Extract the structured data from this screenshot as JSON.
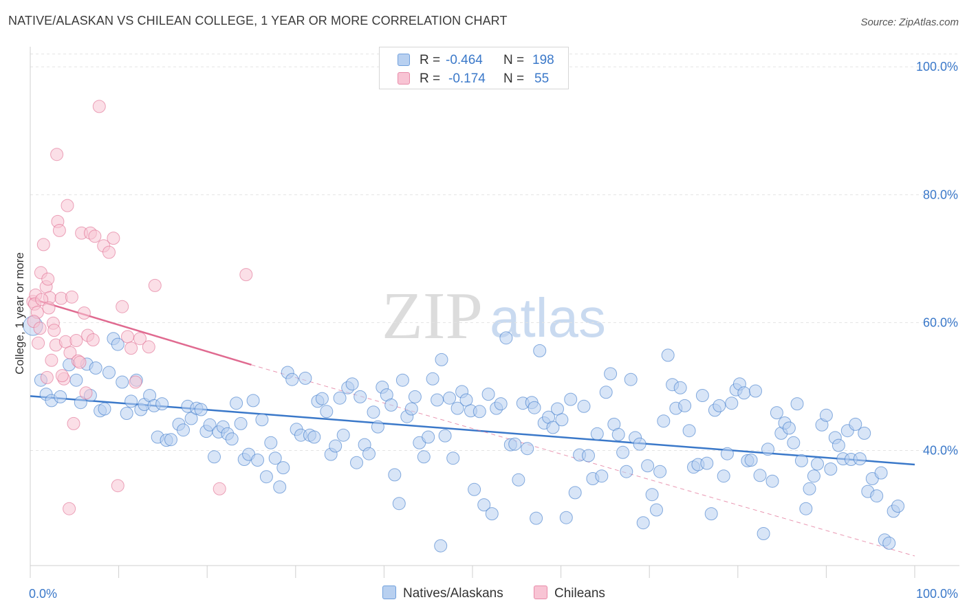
{
  "title": "NATIVE/ALASKAN VS CHILEAN COLLEGE, 1 YEAR OR MORE CORRELATION CHART",
  "source": "Source: ZipAtlas.com",
  "watermark": {
    "zip": "ZIP",
    "atlas": "atlas"
  },
  "legend": {
    "r_label": "R =",
    "n_label": "N =",
    "rows": [
      {
        "name": "Natives/Alaskans",
        "r": "-0.464",
        "n": "198",
        "fill": "#b8d0f0",
        "stroke": "#6f9fdc"
      },
      {
        "name": "Chileans",
        "r": "-0.174",
        "n": "55",
        "fill": "#f8c4d4",
        "stroke": "#e88aa8"
      }
    ]
  },
  "chart_data": {
    "type": "scatter",
    "xlabel": "",
    "ylabel": "College, 1 year or more",
    "xlim": [
      0,
      100
    ],
    "ylim": [
      22,
      104
    ],
    "x_tick_labels": [
      "0.0%",
      "100.0%"
    ],
    "y_ticks": [
      40,
      60,
      80,
      100
    ],
    "y_tick_labels": [
      "40.0%",
      "60.0%",
      "80.0%",
      "100.0%"
    ],
    "series": [
      {
        "name": "Natives/Alaskans",
        "color": "#3a78c9",
        "fill": "#b8d0f0",
        "trend": {
          "x0": 0,
          "y0": 48.5,
          "x1": 100,
          "y1": 37.8,
          "style": "solid"
        },
        "points": [
          [
            0.3,
            59.5
          ],
          [
            1.2,
            51.0
          ],
          [
            1.8,
            48.8
          ],
          [
            2.4,
            47.8
          ],
          [
            3.4,
            48.4
          ],
          [
            4.4,
            53.4
          ],
          [
            5.2,
            51.0
          ],
          [
            5.7,
            47.5
          ],
          [
            6.4,
            53.5
          ],
          [
            6.8,
            48.6
          ],
          [
            7.4,
            52.9
          ],
          [
            7.9,
            46.2
          ],
          [
            8.4,
            46.5
          ],
          [
            8.9,
            52.2
          ],
          [
            9.4,
            57.5
          ],
          [
            9.9,
            56.6
          ],
          [
            10.4,
            50.7
          ],
          [
            10.9,
            45.8
          ],
          [
            11.4,
            47.7
          ],
          [
            12.0,
            51.0
          ],
          [
            12.5,
            46.4
          ],
          [
            12.9,
            47.2
          ],
          [
            13.5,
            48.6
          ],
          [
            14.0,
            47.0
          ],
          [
            14.4,
            42.1
          ],
          [
            14.9,
            47.3
          ],
          [
            15.4,
            41.6
          ],
          [
            15.9,
            41.7
          ],
          [
            16.8,
            44.1
          ],
          [
            17.3,
            43.2
          ],
          [
            17.8,
            46.9
          ],
          [
            18.2,
            45.0
          ],
          [
            18.8,
            46.6
          ],
          [
            19.3,
            46.4
          ],
          [
            19.9,
            43.0
          ],
          [
            20.3,
            44.0
          ],
          [
            20.8,
            39.0
          ],
          [
            21.3,
            42.9
          ],
          [
            21.8,
            43.7
          ],
          [
            22.3,
            42.6
          ],
          [
            22.8,
            41.8
          ],
          [
            23.3,
            47.4
          ],
          [
            23.8,
            44.2
          ],
          [
            24.2,
            38.6
          ],
          [
            24.7,
            39.4
          ],
          [
            25.2,
            47.8
          ],
          [
            25.7,
            38.5
          ],
          [
            26.2,
            44.8
          ],
          [
            26.7,
            35.9
          ],
          [
            27.2,
            41.2
          ],
          [
            27.7,
            38.8
          ],
          [
            28.2,
            34.3
          ],
          [
            28.6,
            37.3
          ],
          [
            29.1,
            52.2
          ],
          [
            29.6,
            51.1
          ],
          [
            30.1,
            43.3
          ],
          [
            30.6,
            42.4
          ],
          [
            31.1,
            51.3
          ],
          [
            31.6,
            42.4
          ],
          [
            32.1,
            42.1
          ],
          [
            32.5,
            47.7
          ],
          [
            33.0,
            48.1
          ],
          [
            33.5,
            46.1
          ],
          [
            34.0,
            39.4
          ],
          [
            34.5,
            40.7
          ],
          [
            35.0,
            48.2
          ],
          [
            35.4,
            42.4
          ],
          [
            35.9,
            49.8
          ],
          [
            36.4,
            50.4
          ],
          [
            36.9,
            38.1
          ],
          [
            37.3,
            48.4
          ],
          [
            37.8,
            40.9
          ],
          [
            38.3,
            39.5
          ],
          [
            38.8,
            46.0
          ],
          [
            39.3,
            43.7
          ],
          [
            39.8,
            49.9
          ],
          [
            40.3,
            48.7
          ],
          [
            40.8,
            47.1
          ],
          [
            41.2,
            36.2
          ],
          [
            41.7,
            31.7
          ],
          [
            42.1,
            51.0
          ],
          [
            42.6,
            45.3
          ],
          [
            43.1,
            46.5
          ],
          [
            43.5,
            48.4
          ],
          [
            44.0,
            41.2
          ],
          [
            44.5,
            39.0
          ],
          [
            45.0,
            42.1
          ],
          [
            45.5,
            51.2
          ],
          [
            46.0,
            47.9
          ],
          [
            46.5,
            54.2
          ],
          [
            46.9,
            42.3
          ],
          [
            47.4,
            48.2
          ],
          [
            47.8,
            38.8
          ],
          [
            48.3,
            46.6
          ],
          [
            48.8,
            49.2
          ],
          [
            49.3,
            47.9
          ],
          [
            49.8,
            46.2
          ],
          [
            50.2,
            33.9
          ],
          [
            50.8,
            46.1
          ],
          [
            51.3,
            31.5
          ],
          [
            51.8,
            48.8
          ],
          [
            52.2,
            30.1
          ],
          [
            52.7,
            46.6
          ],
          [
            53.2,
            47.3
          ],
          [
            53.8,
            57.6
          ],
          [
            54.3,
            40.9
          ],
          [
            54.8,
            41.0
          ],
          [
            55.2,
            35.4
          ],
          [
            55.7,
            47.4
          ],
          [
            56.2,
            40.3
          ],
          [
            56.7,
            47.5
          ],
          [
            57.2,
            29.4
          ],
          [
            57.6,
            55.6
          ],
          [
            58.1,
            44.3
          ],
          [
            58.6,
            45.2
          ],
          [
            59.1,
            43.6
          ],
          [
            59.6,
            46.5
          ],
          [
            60.1,
            44.8
          ],
          [
            60.6,
            29.5
          ],
          [
            61.1,
            48.0
          ],
          [
            61.6,
            33.4
          ],
          [
            62.1,
            39.3
          ],
          [
            62.6,
            46.9
          ],
          [
            63.1,
            39.2
          ],
          [
            63.6,
            35.6
          ],
          [
            64.1,
            42.6
          ],
          [
            64.6,
            36.0
          ],
          [
            65.1,
            49.1
          ],
          [
            65.6,
            52.0
          ],
          [
            66.0,
            44.1
          ],
          [
            66.5,
            42.5
          ],
          [
            67.0,
            39.7
          ],
          [
            67.4,
            36.7
          ],
          [
            67.9,
            51.1
          ],
          [
            68.4,
            42.0
          ],
          [
            68.9,
            41.0
          ],
          [
            69.3,
            28.7
          ],
          [
            69.8,
            37.6
          ],
          [
            70.3,
            33.1
          ],
          [
            70.8,
            30.7
          ],
          [
            71.2,
            36.7
          ],
          [
            71.6,
            44.6
          ],
          [
            72.1,
            54.9
          ],
          [
            72.6,
            50.3
          ],
          [
            73.0,
            46.6
          ],
          [
            73.5,
            49.8
          ],
          [
            74.0,
            47.0
          ],
          [
            74.5,
            43.1
          ],
          [
            75.0,
            37.4
          ],
          [
            75.5,
            37.8
          ],
          [
            76.0,
            48.6
          ],
          [
            76.5,
            38.0
          ],
          [
            77.0,
            30.1
          ],
          [
            77.4,
            46.3
          ],
          [
            77.9,
            47.0
          ],
          [
            78.4,
            36.0
          ],
          [
            78.8,
            39.5
          ],
          [
            79.3,
            47.4
          ],
          [
            79.8,
            49.5
          ],
          [
            80.2,
            50.4
          ],
          [
            80.7,
            49.0
          ],
          [
            81.1,
            38.4
          ],
          [
            81.5,
            38.5
          ],
          [
            82.0,
            49.3
          ],
          [
            82.5,
            36.1
          ],
          [
            82.9,
            27.0
          ],
          [
            83.4,
            40.2
          ],
          [
            83.9,
            35.2
          ],
          [
            84.4,
            45.9
          ],
          [
            84.9,
            42.7
          ],
          [
            85.3,
            44.3
          ],
          [
            85.8,
            43.5
          ],
          [
            86.3,
            41.2
          ],
          [
            86.7,
            47.3
          ],
          [
            87.2,
            38.4
          ],
          [
            87.7,
            30.9
          ],
          [
            88.1,
            34.0
          ],
          [
            88.6,
            36.0
          ],
          [
            89.0,
            37.9
          ],
          [
            89.5,
            44.0
          ],
          [
            90.0,
            45.5
          ],
          [
            90.5,
            37.1
          ],
          [
            91.0,
            42.0
          ],
          [
            91.4,
            40.8
          ],
          [
            91.9,
            38.7
          ],
          [
            92.4,
            43.1
          ],
          [
            92.8,
            38.6
          ],
          [
            93.3,
            44.1
          ],
          [
            93.8,
            38.7
          ],
          [
            94.3,
            42.7
          ],
          [
            94.7,
            33.6
          ],
          [
            95.2,
            35.6
          ],
          [
            95.7,
            32.9
          ],
          [
            96.2,
            36.5
          ],
          [
            96.6,
            26.0
          ],
          [
            97.1,
            25.5
          ],
          [
            97.6,
            30.5
          ],
          [
            98.1,
            31.3
          ],
          [
            46.4,
            25.1
          ],
          [
            57.0,
            46.7
          ]
        ]
      },
      {
        "name": "Chileans",
        "color": "#e06a90",
        "fill": "#f8c4d4",
        "trend": {
          "x0": 0,
          "y0": 63.8,
          "x1": 25,
          "y1": 53.4,
          "style": "solid",
          "dash_to_x": 100,
          "dash_to_y": 23.5
        },
        "points": [
          [
            0.3,
            63.3
          ],
          [
            0.6,
            64.3
          ],
          [
            0.9,
            56.8
          ],
          [
            1.2,
            67.8
          ],
          [
            1.5,
            72.2
          ],
          [
            1.8,
            65.6
          ],
          [
            2.0,
            66.8
          ],
          [
            2.2,
            63.9
          ],
          [
            2.4,
            54.1
          ],
          [
            2.6,
            59.9
          ],
          [
            2.9,
            56.5
          ],
          [
            3.1,
            75.8
          ],
          [
            3.3,
            74.4
          ],
          [
            3.5,
            63.8
          ],
          [
            3.8,
            51.2
          ],
          [
            4.0,
            57.0
          ],
          [
            4.2,
            78.3
          ],
          [
            4.5,
            55.3
          ],
          [
            4.7,
            64.0
          ],
          [
            4.9,
            44.2
          ],
          [
            5.2,
            57.2
          ],
          [
            5.4,
            54.0
          ],
          [
            5.6,
            53.8
          ],
          [
            5.8,
            74.0
          ],
          [
            6.1,
            61.5
          ],
          [
            6.3,
            49.0
          ],
          [
            6.5,
            58.0
          ],
          [
            6.8,
            74.0
          ],
          [
            7.1,
            57.3
          ],
          [
            7.3,
            73.5
          ],
          [
            7.8,
            93.8
          ],
          [
            8.3,
            72.0
          ],
          [
            8.9,
            71.0
          ],
          [
            9.4,
            73.2
          ],
          [
            9.9,
            34.5
          ],
          [
            10.4,
            62.5
          ],
          [
            11.0,
            57.8
          ],
          [
            11.4,
            56.0
          ],
          [
            11.9,
            50.7
          ],
          [
            12.4,
            57.5
          ],
          [
            13.4,
            56.2
          ],
          [
            14.1,
            65.8
          ],
          [
            0.5,
            62.9
          ],
          [
            0.8,
            61.6
          ],
          [
            1.3,
            63.6
          ],
          [
            1.9,
            51.4
          ],
          [
            3.0,
            86.3
          ],
          [
            3.6,
            51.7
          ],
          [
            2.1,
            62.3
          ],
          [
            4.4,
            30.9
          ],
          [
            21.4,
            34.0
          ],
          [
            24.4,
            67.5
          ],
          [
            0.4,
            60.2
          ],
          [
            1.1,
            59.1
          ],
          [
            2.7,
            58.8
          ]
        ]
      }
    ]
  }
}
